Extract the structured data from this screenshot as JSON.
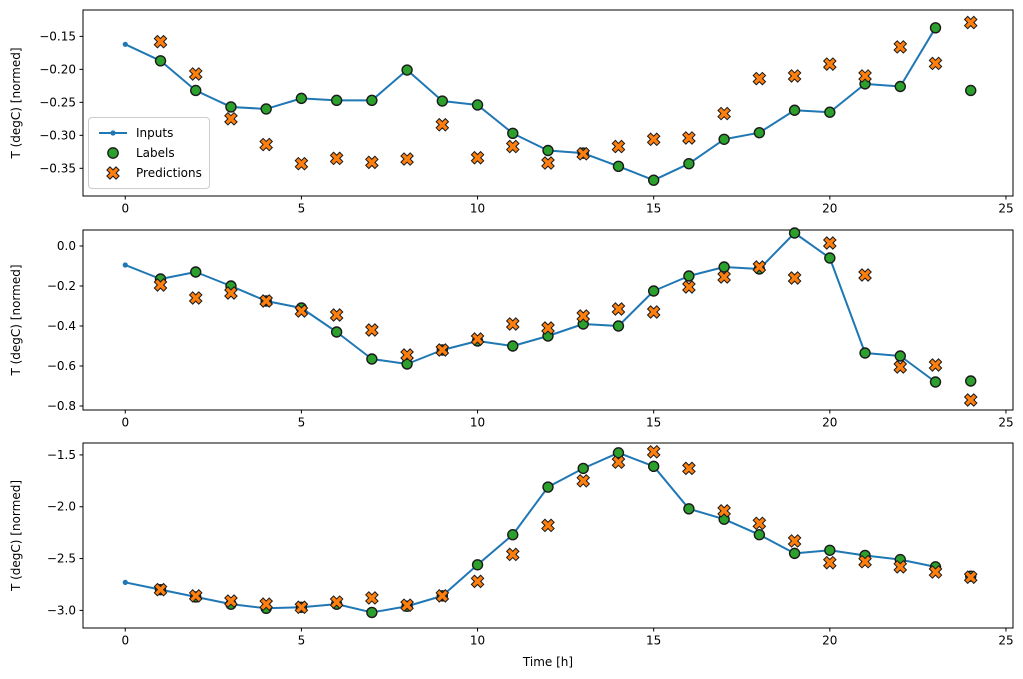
{
  "figure": {
    "xlabel": "Time [h]",
    "ylabel": "T (degC) [normed]",
    "legend": {
      "items": [
        {
          "label": "Inputs",
          "marker": "line-dot",
          "color": "#1f77b4"
        },
        {
          "label": "Labels",
          "marker": "circle",
          "color": "#2ca02c"
        },
        {
          "label": "Predictions",
          "marker": "x",
          "color": "#ff7f0e"
        }
      ]
    },
    "colors": {
      "inputs": "#1f77b4",
      "labels": "#2ca02c",
      "predictions": "#ff7f0e",
      "marker_edge": "#1a1a1a",
      "spine": "#000000",
      "text": "#000000"
    }
  },
  "chart_data": [
    {
      "type": "line",
      "ylabel": "T (degC) [normed]",
      "xlim": [
        -1.2,
        25.2
      ],
      "ylim": [
        -0.392,
        -0.11
      ],
      "xtick_values": [
        0,
        5,
        10,
        15,
        20,
        25
      ],
      "xtick_labels": [
        "0",
        "5",
        "10",
        "15",
        "20",
        "25"
      ],
      "ytick_values": [
        -0.15,
        -0.2,
        -0.25,
        -0.3,
        -0.35
      ],
      "ytick_labels": [
        "−0.15",
        "−0.20",
        "−0.25",
        "−0.30",
        "−0.35"
      ],
      "legend": true,
      "series": [
        {
          "name": "Inputs",
          "type": "line",
          "marker": "dot",
          "x": [
            0,
            1,
            2,
            3,
            4,
            5,
            6,
            7,
            8,
            9,
            10,
            11,
            12,
            13,
            14,
            15,
            16,
            17,
            18,
            19,
            20,
            21,
            22,
            23
          ],
          "y": [
            -0.162,
            -0.187,
            -0.232,
            -0.257,
            -0.26,
            -0.244,
            -0.247,
            -0.247,
            -0.201,
            -0.248,
            -0.254,
            -0.297,
            -0.323,
            -0.327,
            -0.347,
            -0.368,
            -0.343,
            -0.306,
            -0.296,
            -0.262,
            -0.265,
            -0.222,
            -0.226,
            -0.137
          ]
        },
        {
          "name": "Labels",
          "type": "scatter",
          "marker": "circle",
          "x": [
            1,
            2,
            3,
            4,
            5,
            6,
            7,
            8,
            9,
            10,
            11,
            12,
            13,
            14,
            15,
            16,
            17,
            18,
            19,
            20,
            21,
            22,
            23,
            24
          ],
          "y": [
            -0.187,
            -0.232,
            -0.257,
            -0.26,
            -0.244,
            -0.247,
            -0.247,
            -0.201,
            -0.248,
            -0.254,
            -0.297,
            -0.323,
            -0.327,
            -0.347,
            -0.368,
            -0.343,
            -0.306,
            -0.296,
            -0.262,
            -0.265,
            -0.222,
            -0.226,
            -0.137,
            -0.232
          ]
        },
        {
          "name": "Predictions",
          "type": "scatter",
          "marker": "X",
          "x": [
            1,
            2,
            3,
            4,
            5,
            6,
            7,
            8,
            9,
            10,
            11,
            12,
            13,
            14,
            15,
            16,
            17,
            18,
            19,
            20,
            21,
            22,
            23,
            24
          ],
          "y": [
            -0.158,
            -0.207,
            -0.275,
            -0.314,
            -0.343,
            -0.335,
            -0.341,
            -0.336,
            -0.284,
            -0.334,
            -0.317,
            -0.342,
            -0.328,
            -0.317,
            -0.306,
            -0.304,
            -0.267,
            -0.214,
            -0.21,
            -0.192,
            -0.21,
            -0.166,
            -0.191,
            -0.129
          ]
        }
      ]
    },
    {
      "type": "line",
      "ylabel": "T (degC) [normed]",
      "xlim": [
        -1.2,
        25.2
      ],
      "ylim": [
        -0.82,
        0.08
      ],
      "xtick_values": [
        0,
        5,
        10,
        15,
        20,
        25
      ],
      "xtick_labels": [
        "0",
        "5",
        "10",
        "15",
        "20",
        "25"
      ],
      "ytick_values": [
        0.0,
        -0.2,
        -0.4,
        -0.6,
        -0.8
      ],
      "ytick_labels": [
        "0.0",
        "−0.2",
        "−0.4",
        "−0.6",
        "−0.8"
      ],
      "legend": false,
      "series": [
        {
          "name": "Inputs",
          "type": "line",
          "marker": "dot",
          "x": [
            0,
            1,
            2,
            3,
            4,
            5,
            6,
            7,
            8,
            9,
            10,
            11,
            12,
            13,
            14,
            15,
            16,
            17,
            18,
            19,
            20,
            21,
            22,
            23
          ],
          "y": [
            -0.095,
            -0.165,
            -0.13,
            -0.2,
            -0.275,
            -0.31,
            -0.43,
            -0.565,
            -0.59,
            -0.52,
            -0.475,
            -0.5,
            -0.45,
            -0.39,
            -0.4,
            -0.225,
            -0.15,
            -0.105,
            -0.115,
            0.065,
            -0.06,
            -0.535,
            -0.55,
            -0.68
          ]
        },
        {
          "name": "Labels",
          "type": "scatter",
          "marker": "circle",
          "x": [
            1,
            2,
            3,
            4,
            5,
            6,
            7,
            8,
            9,
            10,
            11,
            12,
            13,
            14,
            15,
            16,
            17,
            18,
            19,
            20,
            21,
            22,
            23,
            24
          ],
          "y": [
            -0.165,
            -0.13,
            -0.2,
            -0.275,
            -0.31,
            -0.43,
            -0.565,
            -0.59,
            -0.52,
            -0.475,
            -0.5,
            -0.45,
            -0.39,
            -0.4,
            -0.225,
            -0.15,
            -0.105,
            -0.115,
            0.065,
            -0.06,
            -0.535,
            -0.55,
            -0.68,
            -0.675
          ]
        },
        {
          "name": "Predictions",
          "type": "scatter",
          "marker": "X",
          "x": [
            1,
            2,
            3,
            4,
            5,
            6,
            7,
            8,
            9,
            10,
            11,
            12,
            13,
            14,
            15,
            16,
            17,
            18,
            19,
            20,
            21,
            22,
            23,
            24
          ],
          "y": [
            -0.195,
            -0.26,
            -0.235,
            -0.275,
            -0.325,
            -0.345,
            -0.42,
            -0.545,
            -0.52,
            -0.465,
            -0.39,
            -0.41,
            -0.35,
            -0.315,
            -0.33,
            -0.205,
            -0.155,
            -0.105,
            -0.16,
            0.015,
            -0.145,
            -0.605,
            -0.595,
            -0.77
          ]
        }
      ]
    },
    {
      "type": "line",
      "ylabel": "T (degC) [normed]",
      "xlabel": "Time [h]",
      "xlim": [
        -1.2,
        25.2
      ],
      "ylim": [
        -3.17,
        -1.385
      ],
      "xtick_values": [
        0,
        5,
        10,
        15,
        20,
        25
      ],
      "xtick_labels": [
        "0",
        "5",
        "10",
        "15",
        "20",
        "25"
      ],
      "ytick_values": [
        -1.5,
        -2.0,
        -2.5,
        -3.0
      ],
      "ytick_labels": [
        "−1.5",
        "−2.0",
        "−2.5",
        "−3.0"
      ],
      "legend": false,
      "series": [
        {
          "name": "Inputs",
          "type": "line",
          "marker": "dot",
          "x": [
            0,
            1,
            2,
            3,
            4,
            5,
            6,
            7,
            8,
            9,
            10,
            11,
            12,
            13,
            14,
            15,
            16,
            17,
            18,
            19,
            20,
            21,
            22,
            23
          ],
          "y": [
            -2.73,
            -2.8,
            -2.87,
            -2.94,
            -2.98,
            -2.97,
            -2.94,
            -3.02,
            -2.96,
            -2.86,
            -2.56,
            -2.27,
            -1.81,
            -1.63,
            -1.48,
            -1.61,
            -2.02,
            -2.12,
            -2.27,
            -2.45,
            -2.42,
            -2.47,
            -2.51,
            -2.58
          ]
        },
        {
          "name": "Labels",
          "type": "scatter",
          "marker": "circle",
          "x": [
            1,
            2,
            3,
            4,
            5,
            6,
            7,
            8,
            9,
            10,
            11,
            12,
            13,
            14,
            15,
            16,
            17,
            18,
            19,
            20,
            21,
            22,
            23,
            24
          ],
          "y": [
            -2.8,
            -2.87,
            -2.94,
            -2.98,
            -2.97,
            -2.94,
            -3.02,
            -2.96,
            -2.86,
            -2.56,
            -2.27,
            -1.81,
            -1.63,
            -1.48,
            -1.61,
            -2.02,
            -2.12,
            -2.27,
            -2.45,
            -2.42,
            -2.47,
            -2.51,
            -2.58,
            -2.67
          ]
        },
        {
          "name": "Predictions",
          "type": "scatter",
          "marker": "X",
          "x": [
            1,
            2,
            3,
            4,
            5,
            6,
            7,
            8,
            9,
            10,
            11,
            12,
            13,
            14,
            15,
            16,
            17,
            18,
            19,
            20,
            21,
            22,
            23,
            24
          ],
          "y": [
            -2.8,
            -2.86,
            -2.91,
            -2.94,
            -2.97,
            -2.92,
            -2.88,
            -2.95,
            -2.86,
            -2.72,
            -2.46,
            -2.18,
            -1.75,
            -1.57,
            -1.47,
            -1.63,
            -2.04,
            -2.16,
            -2.33,
            -2.54,
            -2.53,
            -2.58,
            -2.63,
            -2.68
          ]
        }
      ]
    }
  ]
}
